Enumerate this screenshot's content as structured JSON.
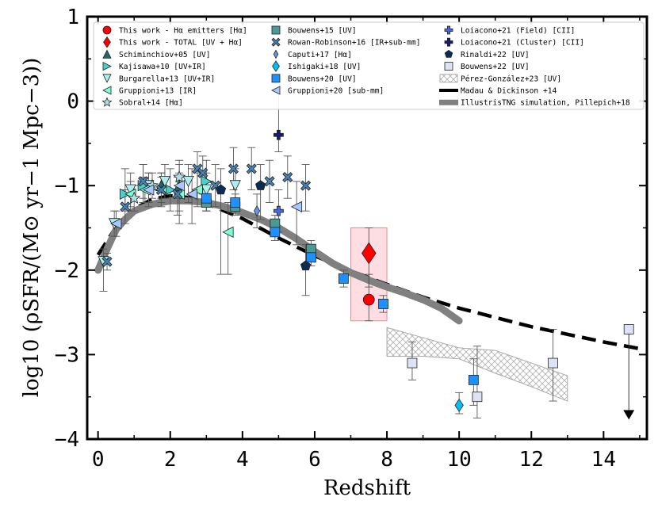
{
  "chart_data": {
    "type": "scatter",
    "title": "",
    "xlabel": "Redshift",
    "ylabel": "log10 (ρSFR/(M⊙ yr−1 Mpc−3))",
    "xlim": [
      -0.3,
      15.2
    ],
    "ylim": [
      -4,
      1
    ],
    "xticks": [
      0,
      2,
      4,
      6,
      8,
      10,
      12,
      14
    ],
    "yticks": [
      1,
      0,
      -1,
      -2,
      -3,
      -4
    ],
    "xtick_labels": [
      "0",
      "2",
      "4",
      "6",
      "8",
      "10",
      "12",
      "14"
    ],
    "ytick_labels": [
      "1",
      "0",
      "−1",
      "−2",
      "−3",
      "−4"
    ],
    "legend_position": "top",
    "legend": [
      {
        "label": "This work - Hα emitters [Hα]",
        "color": "#ff0000",
        "marker": "circle"
      },
      {
        "label": "This work - TOTAL [UV + Hα]",
        "color": "#ff0000",
        "marker": "diamond"
      },
      {
        "label": "Schiminchiov+05 [UV]",
        "color": "#1b6b6b",
        "marker": "triangle-up"
      },
      {
        "label": "Kajisawa+10 [UV+IR]",
        "color": "#48d1cc",
        "marker": "triangle-right"
      },
      {
        "label": "Burgarella+13 [UV+IR]",
        "color": "#aeeeee",
        "marker": "triangle-down"
      },
      {
        "label": "Gruppioni+13 [IR]",
        "color": "#7fffd4",
        "marker": "triangle-left"
      },
      {
        "label": "Sobral+14 [Hα]",
        "color": "#b0e0e6",
        "marker": "star"
      },
      {
        "label": "Bouwens+15 [UV]",
        "color": "#4a9a96",
        "marker": "square"
      },
      {
        "label": "Rowan-Robinson+16 [IR+sub-mm]",
        "color": "#4682b4",
        "marker": "x"
      },
      {
        "label": "Caputi+17 [Hα]",
        "color": "#6495ed",
        "marker": "thin-diamond"
      },
      {
        "label": "Ishigaki+18 [UV]",
        "color": "#00bfff",
        "marker": "diamond"
      },
      {
        "label": "Bouwens+20 [UV]",
        "color": "#1e90ff",
        "marker": "square"
      },
      {
        "label": "Gruppioni+20 [sub-mm]",
        "color": "#a8c8ff",
        "marker": "triangle-left"
      },
      {
        "label": "Loiacono+21 (Field) [CII]",
        "color": "#4169e1",
        "marker": "plus"
      },
      {
        "label": "Loiacono+21 (Cluster) [CII]",
        "color": "#191970",
        "marker": "plus"
      },
      {
        "label": "Rinaldi+22 [UV]",
        "color": "#0d2c54",
        "marker": "pentagon"
      },
      {
        "label": "Bouwens+22 [UV]",
        "color": "#dde2f5",
        "marker": "square"
      },
      {
        "label": "Pérez-González+23 [UV]",
        "color": "#c0c0c0",
        "marker": "hatch"
      },
      {
        "label": "Madau & Dickinson +14",
        "color": "#000000",
        "marker": "dashed-line"
      },
      {
        "label": "IllustrisTNG simulation, Pillepich+18",
        "color": "#808080",
        "marker": "thick-line"
      }
    ],
    "series": [
      {
        "name": "This work - Hα emitters [Hα]",
        "marker": "circle",
        "color": "#ff0000",
        "size": 14,
        "points": [
          {
            "x": 7.5,
            "y": -2.35,
            "ylo": -2.6,
            "yhi": -2.05
          }
        ]
      },
      {
        "name": "This work - TOTAL [UV + Hα]",
        "marker": "diamond",
        "color": "#ff0000",
        "size": 22,
        "points": [
          {
            "x": 7.5,
            "y": -1.8,
            "ylo": -2.2,
            "yhi": -1.5
          }
        ]
      },
      {
        "name": "Schiminchiov+05 [UV]",
        "marker": "triangle-up",
        "color": "#1b6b6b",
        "size": 13,
        "points": [
          {
            "x": 1.75,
            "y": -1.0,
            "ylo": -1.15,
            "yhi": -0.85
          },
          {
            "x": 2.25,
            "y": -1.0,
            "ylo": -1.15,
            "yhi": -0.85
          }
        ]
      },
      {
        "name": "Kajisawa+10 [UV+IR]",
        "marker": "triangle-right",
        "color": "#48d1cc",
        "size": 13,
        "points": [
          {
            "x": 0.75,
            "y": -1.1,
            "ylo": -1.3,
            "yhi": -0.8
          },
          {
            "x": 1.25,
            "y": -1.0,
            "ylo": -1.2,
            "yhi": -0.75
          },
          {
            "x": 2.0,
            "y": -1.05,
            "ylo": -1.3,
            "yhi": -0.8
          },
          {
            "x": 3.0,
            "y": -0.95,
            "ylo": -1.2,
            "yhi": -0.7
          }
        ]
      },
      {
        "name": "Burgarella+13 [UV+IR]",
        "marker": "triangle-down",
        "color": "#aeeeee",
        "size": 13,
        "points": [
          {
            "x": 0.15,
            "y": -1.9,
            "ylo": -2.25,
            "yhi": -1.75
          },
          {
            "x": 0.45,
            "y": -1.45,
            "ylo": -1.6,
            "yhi": -1.3
          },
          {
            "x": 0.9,
            "y": -1.05,
            "ylo": -1.3,
            "yhi": -0.85
          },
          {
            "x": 1.4,
            "y": -1.0,
            "ylo": -1.2,
            "yhi": -0.85
          },
          {
            "x": 1.85,
            "y": -0.95,
            "ylo": -1.15,
            "yhi": -0.75
          },
          {
            "x": 2.5,
            "y": -0.95,
            "ylo": -1.2,
            "yhi": -0.75
          },
          {
            "x": 3.0,
            "y": -1.05,
            "ylo": -1.3,
            "yhi": -0.85
          },
          {
            "x": 3.8,
            "y": -1.0,
            "ylo": -1.25,
            "yhi": -0.8
          }
        ]
      },
      {
        "name": "Gruppioni+13 [IR]",
        "marker": "triangle-left",
        "color": "#7fffd4",
        "size": 13,
        "points": [
          {
            "x": 0.9,
            "y": -1.1,
            "ylo": -1.25,
            "yhi": -0.95
          },
          {
            "x": 1.3,
            "y": -1.05,
            "ylo": -1.2,
            "yhi": -0.9
          },
          {
            "x": 1.75,
            "y": -1.05,
            "ylo": -1.2,
            "yhi": -0.9
          },
          {
            "x": 2.25,
            "y": -1.1,
            "ylo": -1.3,
            "yhi": -0.9
          },
          {
            "x": 2.75,
            "y": -1.05,
            "ylo": -1.25,
            "yhi": -0.85
          },
          {
            "x": 3.6,
            "y": -1.55,
            "ylo": -2.05,
            "yhi": -1.2
          }
        ]
      },
      {
        "name": "Sobral+14 [Hα]",
        "marker": "star",
        "color": "#b0e0e6",
        "size": 13,
        "points": [
          {
            "x": 1.0,
            "y": -1.15,
            "ylo": -1.3,
            "yhi": -1.0
          },
          {
            "x": 1.5,
            "y": -1.0,
            "ylo": -1.15,
            "yhi": -0.85
          },
          {
            "x": 2.25,
            "y": -0.9,
            "ylo": -1.05,
            "yhi": -0.75
          }
        ]
      },
      {
        "name": "Bouwens+15 [UV]",
        "marker": "square",
        "color": "#4a9a96",
        "size": 12,
        "points": [
          {
            "x": 3.0,
            "y": -1.2,
            "ylo": -1.3,
            "yhi": -1.1
          },
          {
            "x": 3.8,
            "y": -1.25,
            "ylo": -1.35,
            "yhi": -1.15
          },
          {
            "x": 4.9,
            "y": -1.45,
            "ylo": -1.6,
            "yhi": -1.35
          },
          {
            "x": 5.9,
            "y": -1.75,
            "ylo": -1.85,
            "yhi": -1.65
          }
        ]
      },
      {
        "name": "Rowan-Robinson+16 [IR+sub-mm]",
        "marker": "x",
        "color": "#4682b4",
        "size": 12,
        "points": [
          {
            "x": 0.25,
            "y": -1.9,
            "ylo": -2.0,
            "yhi": -1.8
          },
          {
            "x": 0.75,
            "y": -1.25,
            "ylo": -1.45,
            "yhi": -1.05
          },
          {
            "x": 1.25,
            "y": -0.95,
            "ylo": -1.15,
            "yhi": -0.75
          },
          {
            "x": 1.75,
            "y": -1.05,
            "ylo": -1.25,
            "yhi": -0.85
          },
          {
            "x": 2.2,
            "y": -1.1,
            "ylo": -1.35,
            "yhi": -0.9
          },
          {
            "x": 2.75,
            "y": -0.8,
            "ylo": -1.05,
            "yhi": -0.6
          },
          {
            "x": 2.9,
            "y": -0.85,
            "ylo": -1.1,
            "yhi": -0.65
          },
          {
            "x": 3.25,
            "y": -1.0,
            "ylo": -1.25,
            "yhi": -0.75
          },
          {
            "x": 3.75,
            "y": -0.8,
            "ylo": -1.05,
            "yhi": -0.55
          },
          {
            "x": 4.25,
            "y": -0.8,
            "ylo": -1.05,
            "yhi": -0.55
          },
          {
            "x": 4.75,
            "y": -0.95,
            "ylo": -1.2,
            "yhi": -0.7
          },
          {
            "x": 5.25,
            "y": -0.9,
            "ylo": -1.15,
            "yhi": -0.65
          },
          {
            "x": 5.75,
            "y": -1.0,
            "ylo": -1.3,
            "yhi": -0.75
          }
        ]
      },
      {
        "name": "Caputi+17 [Hα]",
        "marker": "thin-diamond",
        "color": "#6495ed",
        "size": 13,
        "points": [
          {
            "x": 4.4,
            "y": -1.3,
            "ylo": -1.5,
            "yhi": -1.1
          }
        ]
      },
      {
        "name": "Ishigaki+18 [UV]",
        "marker": "diamond",
        "color": "#00bfff",
        "size": 13,
        "points": [
          {
            "x": 10.0,
            "y": -3.6,
            "ylo": -3.7,
            "yhi": -3.45
          }
        ]
      },
      {
        "name": "Bouwens+20 [UV]",
        "marker": "square",
        "color": "#1e90ff",
        "size": 12,
        "points": [
          {
            "x": 3.0,
            "y": -1.15,
            "ylo": -1.3,
            "yhi": -1.05
          },
          {
            "x": 3.8,
            "y": -1.2,
            "ylo": -1.3,
            "yhi": -1.1
          },
          {
            "x": 4.9,
            "y": -1.55,
            "ylo": -1.65,
            "yhi": -1.45
          },
          {
            "x": 5.9,
            "y": -1.85,
            "ylo": -1.95,
            "yhi": -1.75
          },
          {
            "x": 6.8,
            "y": -2.1,
            "ylo": -2.2,
            "yhi": -2.0
          },
          {
            "x": 7.9,
            "y": -2.4,
            "ylo": -2.5,
            "yhi": -2.3
          },
          {
            "x": 10.4,
            "y": -3.3,
            "ylo": -3.6,
            "yhi": -3.05
          }
        ]
      },
      {
        "name": "Gruppioni+20 [sub-mm]",
        "marker": "triangle-left",
        "color": "#a8c8ff",
        "size": 13,
        "points": [
          {
            "x": 0.5,
            "y": -1.45,
            "ylo": -1.6,
            "yhi": -1.3
          },
          {
            "x": 1.4,
            "y": -1.05,
            "ylo": -1.25,
            "yhi": -0.85
          },
          {
            "x": 2.25,
            "y": -1.0,
            "ylo": -1.45,
            "yhi": -0.7
          },
          {
            "x": 2.6,
            "y": -1.1,
            "ylo": -1.45,
            "yhi": -0.8
          },
          {
            "x": 5.5,
            "y": -1.25,
            "ylo": -1.7,
            "yhi": -0.95
          }
        ]
      },
      {
        "name": "Loiacono+21 (Field) [CII]",
        "marker": "plus",
        "color": "#4169e1",
        "size": 12,
        "points": [
          {
            "x": 5.0,
            "y": -1.3,
            "ylo": -1.55,
            "yhi": -1.05
          }
        ]
      },
      {
        "name": "Loiacono+21 (Cluster) [CII]",
        "marker": "plus",
        "color": "#191970",
        "size": 12,
        "points": [
          {
            "x": 5.0,
            "y": -0.4,
            "ylo": -0.6,
            "yhi": 0.15
          }
        ]
      },
      {
        "name": "Rinaldi+22 [UV]",
        "marker": "pentagon",
        "color": "#0d2c54",
        "size": 13,
        "points": [
          {
            "x": 3.4,
            "y": -1.05,
            "ylo": -2.05,
            "yhi": -0.8
          },
          {
            "x": 4.5,
            "y": -1.0,
            "ylo": -1.4,
            "yhi": -0.75
          },
          {
            "x": 5.75,
            "y": -1.95,
            "ylo": -2.3,
            "yhi": -1.7
          }
        ]
      },
      {
        "name": "Bouwens+22 [UV]",
        "marker": "square",
        "color": "#dde2f5",
        "size": 12,
        "points": [
          {
            "x": 8.7,
            "y": -3.1,
            "ylo": -3.3,
            "yhi": -2.85
          },
          {
            "x": 10.5,
            "y": -3.5,
            "ylo": -3.75,
            "yhi": -2.9
          },
          {
            "x": 12.6,
            "y": -3.1,
            "ylo": -3.55,
            "yhi": -2.7
          },
          {
            "x": 14.7,
            "y": -2.7,
            "upper_limit": true,
            "arrow_to": -3.75
          }
        ]
      }
    ],
    "lines": [
      {
        "name": "Madau & Dickinson +14",
        "style": "dashed",
        "color": "#000000",
        "x": [
          0,
          0.5,
          1,
          1.5,
          2,
          2.5,
          3,
          4,
          5,
          6,
          7,
          8,
          9,
          10,
          11,
          12,
          13,
          14,
          15
        ],
        "y": [
          -1.82,
          -1.49,
          -1.28,
          -1.16,
          -1.12,
          -1.14,
          -1.21,
          -1.39,
          -1.62,
          -1.83,
          -2.01,
          -2.17,
          -2.32,
          -2.45,
          -2.56,
          -2.67,
          -2.76,
          -2.85,
          -2.93
        ]
      },
      {
        "name": "IllustrisTNG simulation, Pillepich+18",
        "style": "thick",
        "color": "#808080",
        "x": [
          0,
          0.25,
          0.5,
          0.75,
          1,
          1.5,
          2,
          2.5,
          3,
          3.5,
          4,
          4.5,
          5,
          5.5,
          6,
          6.5,
          7,
          7.5,
          8,
          8.5,
          9,
          9.5,
          10
        ],
        "y": [
          -2.0,
          -1.75,
          -1.52,
          -1.4,
          -1.3,
          -1.22,
          -1.18,
          -1.18,
          -1.2,
          -1.25,
          -1.32,
          -1.4,
          -1.5,
          -1.63,
          -1.78,
          -1.92,
          -2.03,
          -2.12,
          -2.2,
          -2.27,
          -2.35,
          -2.45,
          -2.6
        ]
      }
    ],
    "bands": [
      {
        "name": "This work shaded region",
        "color": "#ffb6c1",
        "x": [
          7.0,
          8.0
        ],
        "y": [
          -2.6,
          -1.5
        ]
      },
      {
        "name": "Pérez-González+23 [UV]",
        "hatch": true,
        "color": "#c0c0c0",
        "upper": [
          [
            8,
            -2.68
          ],
          [
            9,
            -2.8
          ],
          [
            10,
            -2.92
          ],
          [
            11,
            -2.95
          ],
          [
            12,
            -3.1
          ],
          [
            13,
            -3.25
          ]
        ],
        "lower": [
          [
            8,
            -3.02
          ],
          [
            9,
            -3.02
          ],
          [
            10,
            -3.05
          ],
          [
            11,
            -3.22
          ],
          [
            12,
            -3.38
          ],
          [
            13,
            -3.55
          ]
        ]
      }
    ]
  }
}
